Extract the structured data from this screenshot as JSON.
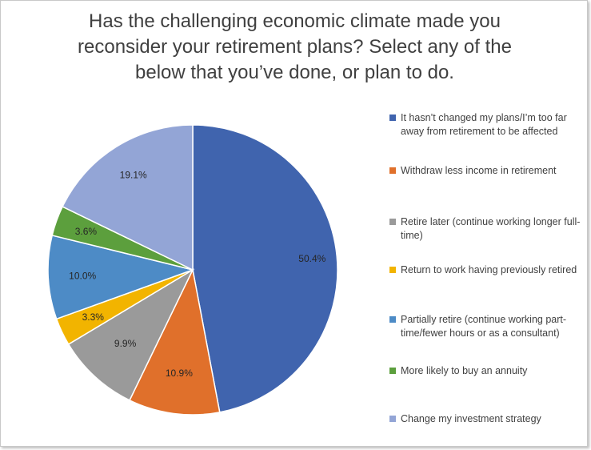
{
  "chart_data": {
    "type": "pie",
    "title_lines": [
      "Has the challenging economic climate made you",
      "reconsider your retirement plans? Select any of the",
      "below that you’ve done, or plan to do."
    ],
    "legend_placement": "right",
    "slices": [
      {
        "name": "It hasn’t changed my plans/I’m too far away from retirement to be affected",
        "value": 50.4,
        "label": "50.4%",
        "color": "#4064AE"
      },
      {
        "name": "Withdraw less income in retirement",
        "value": 10.9,
        "label": "10.9%",
        "color": "#E0702B"
      },
      {
        "name": "Retire later (continue working longer full-time)",
        "value": 9.9,
        "label": "9.9%",
        "color": "#9A9A9A"
      },
      {
        "name": "Return to work having previously retired",
        "value": 3.3,
        "label": "3.3%",
        "color": "#F2B400"
      },
      {
        "name": "Partially retire (continue working part-time/fewer hours or as a consultant)",
        "value": 10.0,
        "label": "10.0%",
        "color": "#4D8BC6"
      },
      {
        "name": "More likely to buy an annuity",
        "value": 3.6,
        "label": "3.6%",
        "color": "#5C9F3D"
      },
      {
        "name": "Change my investment strategy",
        "value": 19.1,
        "label": "19.1%",
        "color": "#93A5D6"
      }
    ]
  }
}
